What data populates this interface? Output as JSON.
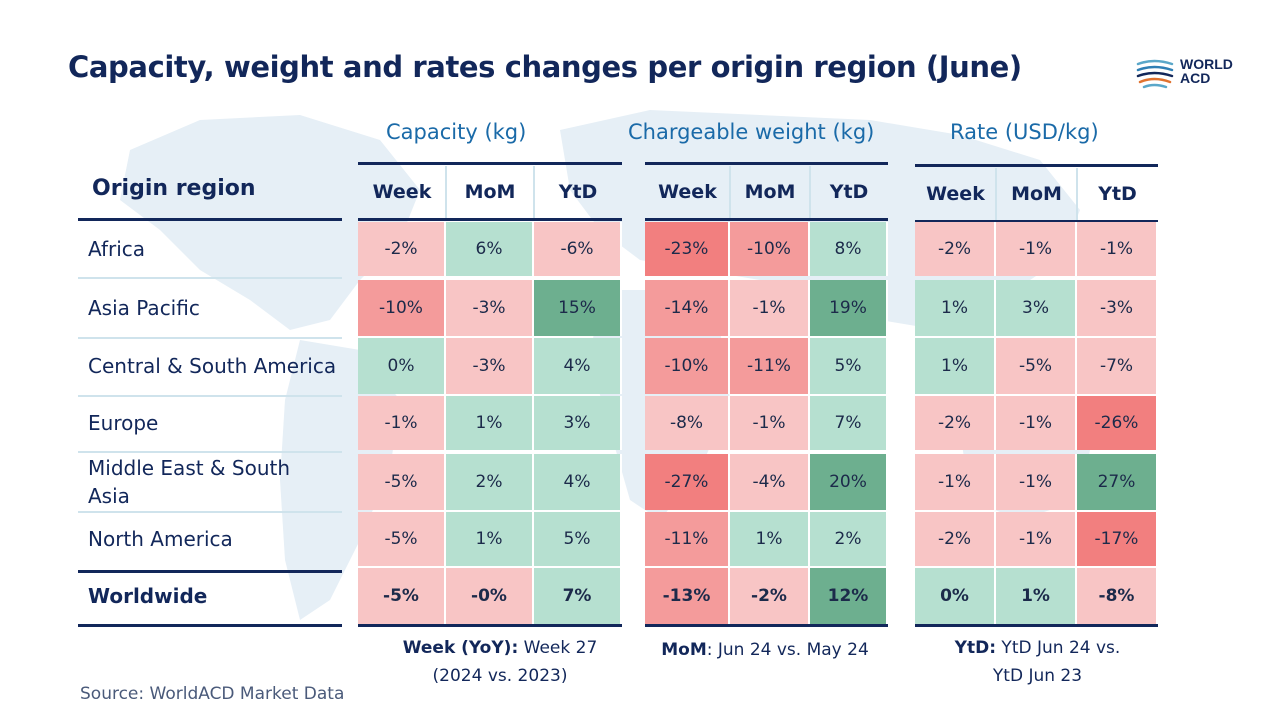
{
  "title": "Capacity, weight and rates changes per origin region (June)",
  "logo": {
    "line1": "WORLD",
    "line2": "ACD"
  },
  "region_header": "Origin region",
  "columns": [
    "Week",
    "MoM",
    "YtD"
  ],
  "groups": [
    {
      "title": "Capacity (kg)"
    },
    {
      "title": "Chargeable weight (kg)"
    },
    {
      "title": "Rate (USD/kg)"
    }
  ],
  "colors": {
    "strong_green": "#6daf8f",
    "light_green": "#b6e0d0",
    "light_red": "#f8c5c5",
    "medium_red": "#f49b9b",
    "strong_red": "#f27f7f",
    "navy": "#12275a"
  },
  "chart_data": {
    "type": "table",
    "title": "Capacity, weight and rates changes per origin region (June)",
    "regions": [
      "Africa",
      "Asia Pacific",
      "Central & South America",
      "Europe",
      "Middle East & South Asia",
      "North America",
      "Worldwide"
    ],
    "metrics": [
      "Capacity (kg)",
      "Chargeable weight (kg)",
      "Rate (USD/kg)"
    ],
    "columns": [
      "Week",
      "MoM",
      "YtD"
    ],
    "values": [
      [
        [
          "-2%",
          "6%",
          "-6%"
        ],
        [
          "-23%",
          "-10%",
          "8%"
        ],
        [
          "-2%",
          "-1%",
          "-1%"
        ]
      ],
      [
        [
          "-10%",
          "-3%",
          "15%"
        ],
        [
          "-14%",
          "-1%",
          "19%"
        ],
        [
          "1%",
          "3%",
          "-3%"
        ]
      ],
      [
        [
          "0%",
          "-3%",
          "4%"
        ],
        [
          "-10%",
          "-11%",
          "5%"
        ],
        [
          "1%",
          "-5%",
          "-7%"
        ]
      ],
      [
        [
          "-1%",
          "1%",
          "3%"
        ],
        [
          "-8%",
          "-1%",
          "7%"
        ],
        [
          "-2%",
          "-1%",
          "-26%"
        ]
      ],
      [
        [
          "-5%",
          "2%",
          "4%"
        ],
        [
          "-27%",
          "-4%",
          "20%"
        ],
        [
          "-1%",
          "-1%",
          "27%"
        ]
      ],
      [
        [
          "-5%",
          "1%",
          "5%"
        ],
        [
          "-11%",
          "1%",
          "2%"
        ],
        [
          "-2%",
          "-1%",
          "-17%"
        ]
      ],
      [
        [
          "-5%",
          "-0%",
          "7%"
        ],
        [
          "-13%",
          "-2%",
          "12%"
        ],
        [
          "0%",
          "1%",
          "-8%"
        ]
      ]
    ]
  },
  "footnotes": [
    {
      "label": "Week (YoY):",
      "text": " Week 27",
      "line2": "(2024 vs. 2023)"
    },
    {
      "label": "MoM",
      "text": ": Jun 24 vs. May 24",
      "line2": ""
    },
    {
      "label": "YtD:",
      "text": " YtD Jun 24 vs.",
      "line2": "YtD Jun 23"
    }
  ],
  "source": "Source: WorldACD Market Data"
}
